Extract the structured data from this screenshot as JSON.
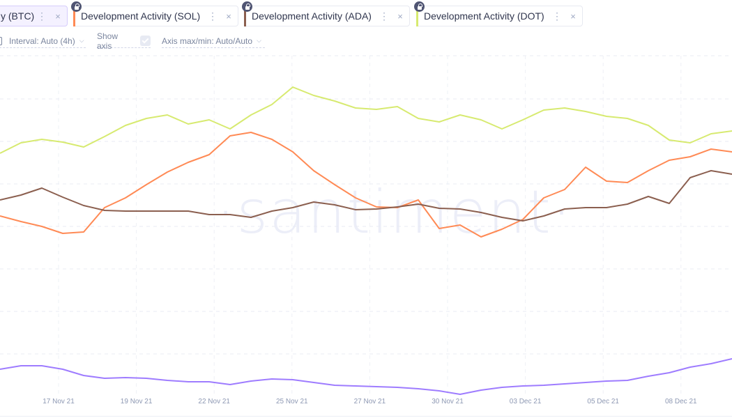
{
  "metrics": [
    {
      "label": "y (BTC)",
      "color": "#9e7cff",
      "locked": false,
      "active": true,
      "lock_icon": "lock-icon"
    },
    {
      "label": "Development Activity (SOL)",
      "color": "#ff8a55",
      "locked": true
    },
    {
      "label": "Development Activity (ADA)",
      "color": "#8b5f4f",
      "locked": true
    },
    {
      "label": "Development Activity (DOT)",
      "color": "#d7ea70",
      "locked": true
    }
  ],
  "chip_menu_icon": "⋮",
  "chip_close_icon": "×",
  "controls": {
    "interval": "Interval: Auto (4h)",
    "show_axis": "Show axis",
    "show_axis_checked": true,
    "axis_maxmin": "Axis max/min: Auto/Auto"
  },
  "watermark": "·santiment·",
  "chart_data": {
    "type": "line",
    "x_ticks": [
      "17 Nov 21",
      "19 Nov 21",
      "22 Nov 21",
      "25 Nov 21",
      "27 Nov 21",
      "30 Nov 21",
      "03 Dec 21",
      "05 Dec 21",
      "08 Dec 21"
    ],
    "x_range": [
      "2021-11-15",
      "2021-12-09"
    ],
    "y_axis_shown": false,
    "grid": true,
    "series": [
      {
        "name": "Development Activity (DOT)",
        "color": "#d7ea70",
        "values": [
          380,
          395,
          400,
          396,
          389,
          404,
          420,
          430,
          435,
          422,
          428,
          415,
          435,
          450,
          475,
          463,
          455,
          445,
          443,
          447,
          430,
          425,
          435,
          428,
          415,
          428,
          442,
          445,
          440,
          433,
          430,
          420,
          399,
          395,
          408,
          412
        ]
      },
      {
        "name": "Development Activity (SOL)",
        "color": "#ff8a55",
        "values": [
          290,
          282,
          275,
          265,
          267,
          302,
          316,
          335,
          353,
          367,
          378,
          405,
          410,
          400,
          382,
          355,
          335,
          316,
          303,
          302,
          313,
          272,
          277,
          260,
          271,
          285,
          316,
          328,
          360,
          340,
          338,
          355,
          370,
          375,
          386,
          382
        ]
      },
      {
        "name": "Development Activity (ADA)",
        "color": "#8b5f4f",
        "values": [
          313,
          320,
          330,
          317,
          305,
          298,
          297,
          297,
          297,
          297,
          292,
          292,
          288,
          297,
          302,
          310,
          306,
          299,
          300,
          303,
          307,
          301,
          300,
          295,
          288,
          283,
          290,
          300,
          302,
          302,
          307,
          318,
          308,
          345,
          355,
          350
        ]
      },
      {
        "name": "y (BTC)",
        "color": "#9e7cff",
        "values": [
          70,
          75,
          75,
          70,
          61,
          57,
          58,
          57,
          54,
          52,
          52,
          48,
          53,
          56,
          55,
          51,
          47,
          46,
          45,
          44,
          42,
          39,
          34,
          40,
          44,
          46,
          47,
          49,
          51,
          53,
          54,
          60,
          65,
          73,
          78,
          85
        ]
      }
    ]
  }
}
